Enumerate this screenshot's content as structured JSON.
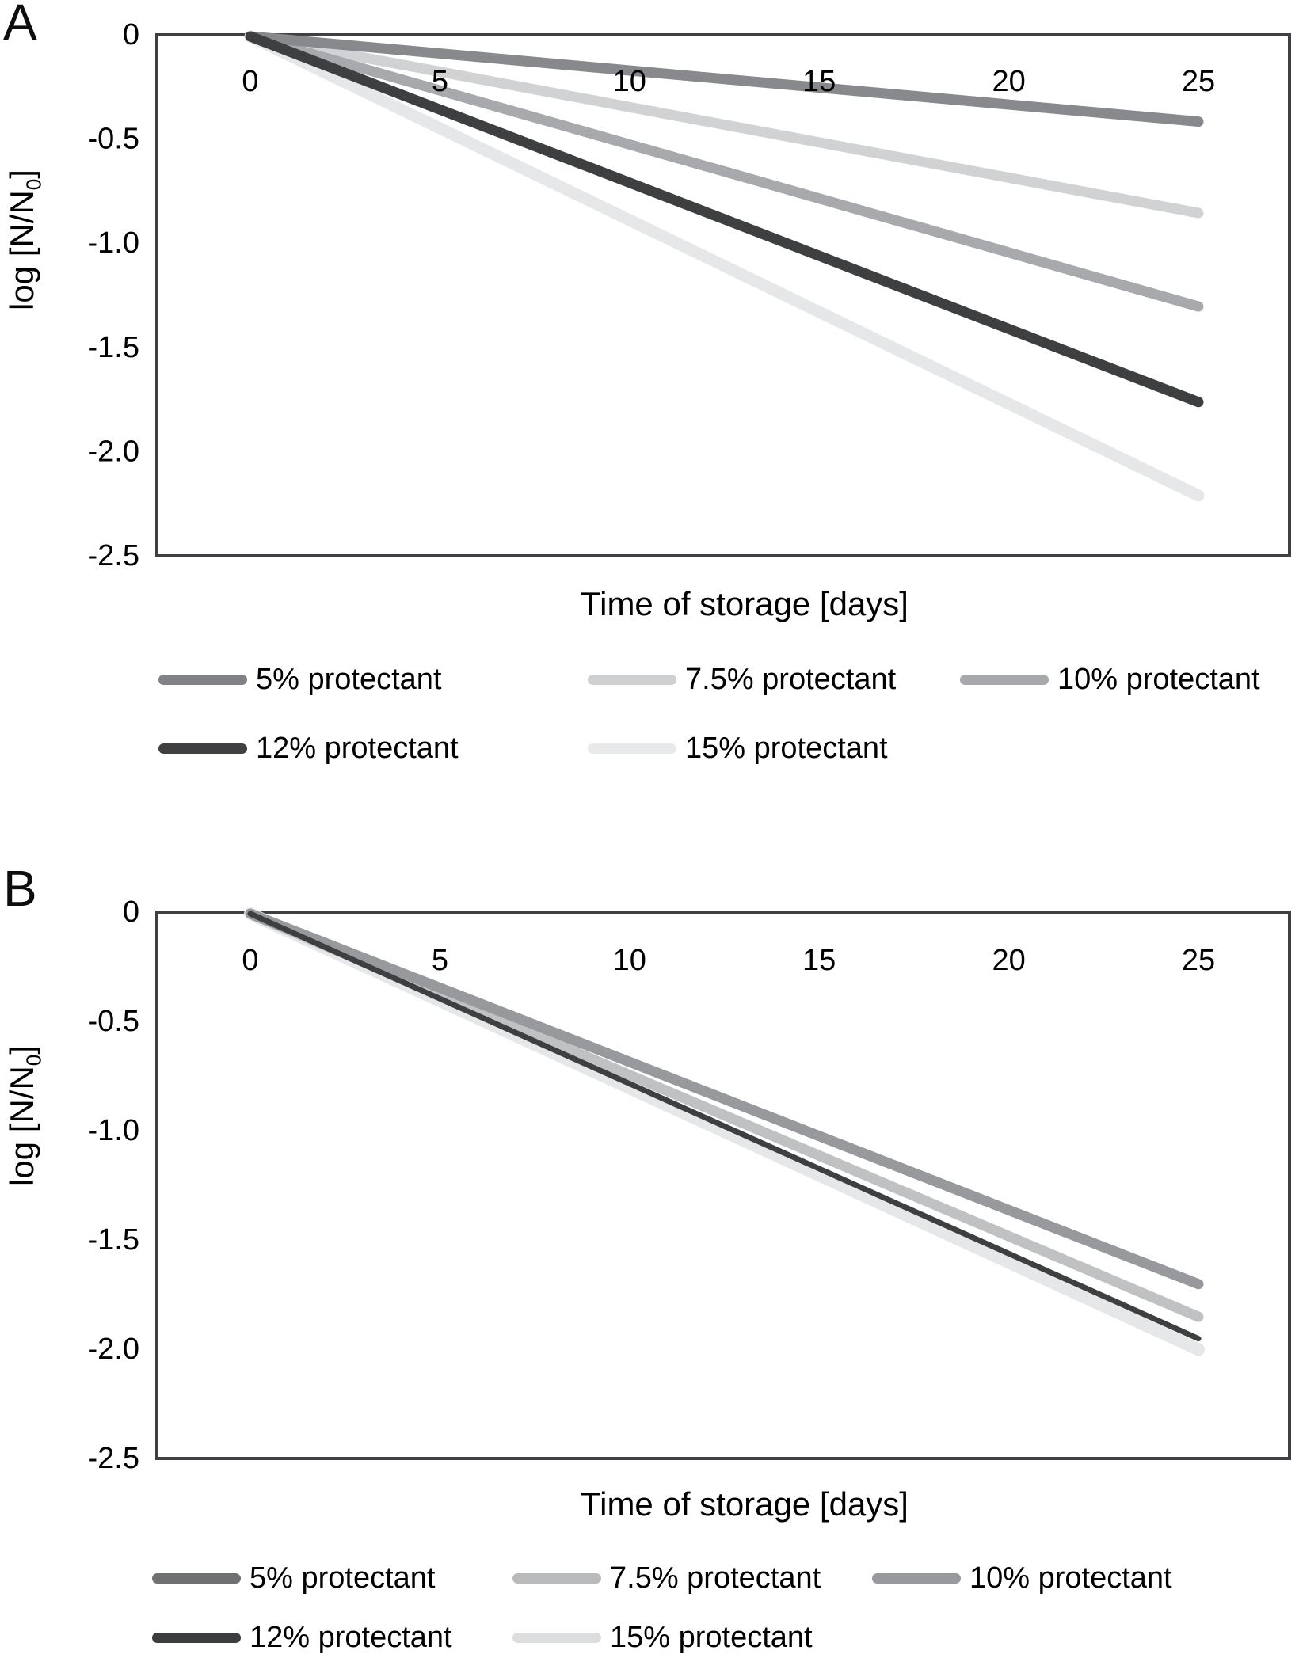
{
  "figure": {
    "background": "#ffffff",
    "frame_color": "#3e4043",
    "text_color": "#000000",
    "panels": [
      {
        "letter": "A",
        "x_title": "Time of storage [days]",
        "y_title": {
          "pre": "log [N/N",
          "sub": "0",
          "post": "]"
        },
        "legend": [
          {
            "label": "5% protectant",
            "color": "#808285"
          },
          {
            "label": "7.5% protectant",
            "color": "#cfd0d2"
          },
          {
            "label": "10% protectant",
            "color": "#a6a8ab"
          },
          {
            "label": "12% protectant",
            "color": "#3f4042"
          },
          {
            "label": "15% protectant",
            "color": "#e8e9eb"
          }
        ]
      },
      {
        "letter": "B",
        "x_title": "Time of storage [days]",
        "y_title": {
          "pre": "log [N/N",
          "sub": "0",
          "post": "]"
        },
        "legend": [
          {
            "label": "5% protectant",
            "color": "#6e7072"
          },
          {
            "label": "7.5% protectant",
            "color": "#b9babc"
          },
          {
            "label": "10% protectant",
            "color": "#97999c"
          },
          {
            "label": "12% protectant",
            "color": "#3c3d3f"
          },
          {
            "label": "15% protectant",
            "color": "#dcddde"
          }
        ]
      }
    ]
  },
  "chart_data": [
    {
      "type": "line",
      "panel": "A",
      "xlabel": "Time of storage [days]",
      "ylabel": "log [N/N0]",
      "xlim": [
        0,
        25
      ],
      "ylim": [
        -2.5,
        0
      ],
      "x_ticks": [
        0,
        5,
        10,
        15,
        20,
        25
      ],
      "y_ticks": [
        0,
        -0.5,
        -1.0,
        -1.5,
        -2.0,
        -2.5
      ],
      "y_tick_labels": [
        "0",
        "-0.5",
        "-1.0",
        "-1.5",
        "-2.0",
        "-2.5"
      ],
      "grid": false,
      "legend_position": "below",
      "x": [
        0,
        25
      ],
      "series": [
        {
          "name": "5% protectant",
          "color": "#87898c",
          "line_width": 13,
          "values": [
            0,
            -0.41
          ]
        },
        {
          "name": "7.5% protectant",
          "color": "#d1d2d4",
          "line_width": 13,
          "values": [
            0,
            -0.85
          ]
        },
        {
          "name": "10% protectant",
          "color": "#a7a9ac",
          "line_width": 13,
          "values": [
            0,
            -1.3
          ]
        },
        {
          "name": "12% protectant",
          "color": "#3e3f41",
          "line_width": 13,
          "values": [
            0,
            -1.76
          ]
        },
        {
          "name": "15% protectant",
          "color": "#e6e7e9",
          "line_width": 15,
          "values": [
            0,
            -2.21
          ]
        }
      ],
      "draw_order": [
        4,
        1,
        2,
        0,
        3
      ]
    },
    {
      "type": "line",
      "panel": "B",
      "xlabel": "Time of storage [days]",
      "ylabel": "log [N/N0]",
      "xlim": [
        0,
        25
      ],
      "ylim": [
        -2.5,
        0
      ],
      "x_ticks": [
        0,
        5,
        10,
        15,
        20,
        25
      ],
      "y_ticks": [
        0,
        -0.5,
        -1.0,
        -1.5,
        -2.0,
        -2.5
      ],
      "y_tick_labels": [
        "0",
        "-0.5",
        "-1.0",
        "-1.5",
        "-2.0",
        "-2.5"
      ],
      "grid": false,
      "legend_position": "below",
      "x": [
        0,
        25
      ],
      "series": [
        {
          "name": "5% protectant",
          "color": "#6e7072",
          "line_width": 10,
          "values": [
            0,
            -1.7
          ]
        },
        {
          "name": "7.5% protectant",
          "color": "#c0c1c3",
          "line_width": 13,
          "values": [
            0,
            -1.85
          ]
        },
        {
          "name": "10% protectant",
          "color": "#97999c",
          "line_width": 13,
          "values": [
            0,
            -1.7
          ]
        },
        {
          "name": "12% protectant",
          "color": "#3e3f41",
          "line_width": 7,
          "values": [
            0,
            -1.95
          ]
        },
        {
          "name": "15% protectant",
          "color": "#e6e7e9",
          "line_width": 16,
          "values": [
            0,
            -2.0
          ]
        }
      ],
      "draw_order": [
        0,
        4,
        1,
        2,
        3
      ]
    }
  ]
}
